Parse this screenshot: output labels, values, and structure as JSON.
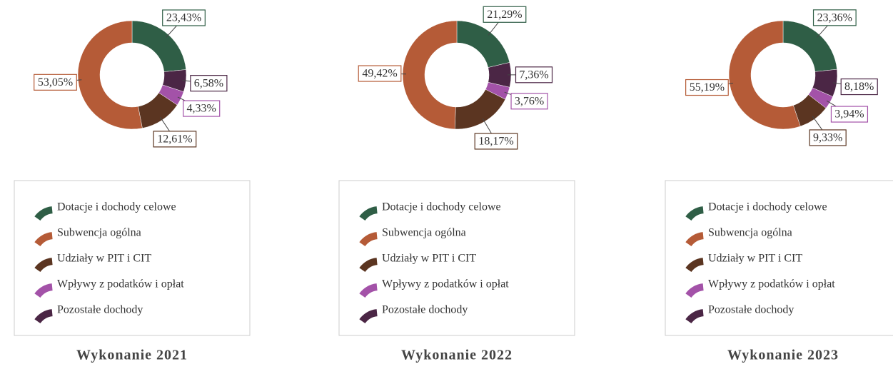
{
  "chart_data": [
    {
      "type": "donut",
      "title": "Wykonanie 2021",
      "categories": [
        "Dotacje i dochody celowe",
        "Subwencja ogólna",
        "Udziały w PIT i CIT",
        "Wpływy z podatków i opłat",
        "Pozostałe dochody"
      ],
      "values": [
        23.43,
        53.05,
        12.61,
        4.33,
        6.58
      ],
      "value_labels": [
        "23,43%",
        "53,05%",
        "12,61%",
        "4,33%",
        "6,58%"
      ],
      "colors": [
        "#2f5e46",
        "#b55b37",
        "#5b3521",
        "#a352a8",
        "#4b2645"
      ]
    },
    {
      "type": "donut",
      "title": "Wykonanie 2022",
      "categories": [
        "Dotacje i dochody celowe",
        "Subwencja ogólna",
        "Udziały w PIT i CIT",
        "Wpływy z podatków i opłat",
        "Pozostałe dochody"
      ],
      "values": [
        21.29,
        49.42,
        18.17,
        3.76,
        7.36
      ],
      "value_labels": [
        "21,29%",
        "49,42%",
        "18,17%",
        "3,76%",
        "7,36%"
      ],
      "colors": [
        "#2f5e46",
        "#b55b37",
        "#5b3521",
        "#a352a8",
        "#4b2645"
      ]
    },
    {
      "type": "donut",
      "title": "Wykonanie 2023",
      "categories": [
        "Dotacje i dochody celowe",
        "Subwencja ogólna",
        "Udziały w PIT i CIT",
        "Wpływy z podatków i opłat",
        "Pozostałe dochody"
      ],
      "values": [
        23.36,
        55.19,
        9.33,
        3.94,
        8.18
      ],
      "value_labels": [
        "23,36%",
        "55,19%",
        "9,33%",
        "3,94%",
        "8,18%"
      ],
      "colors": [
        "#2f5e46",
        "#b55b37",
        "#5b3521",
        "#a352a8",
        "#4b2645"
      ]
    }
  ]
}
